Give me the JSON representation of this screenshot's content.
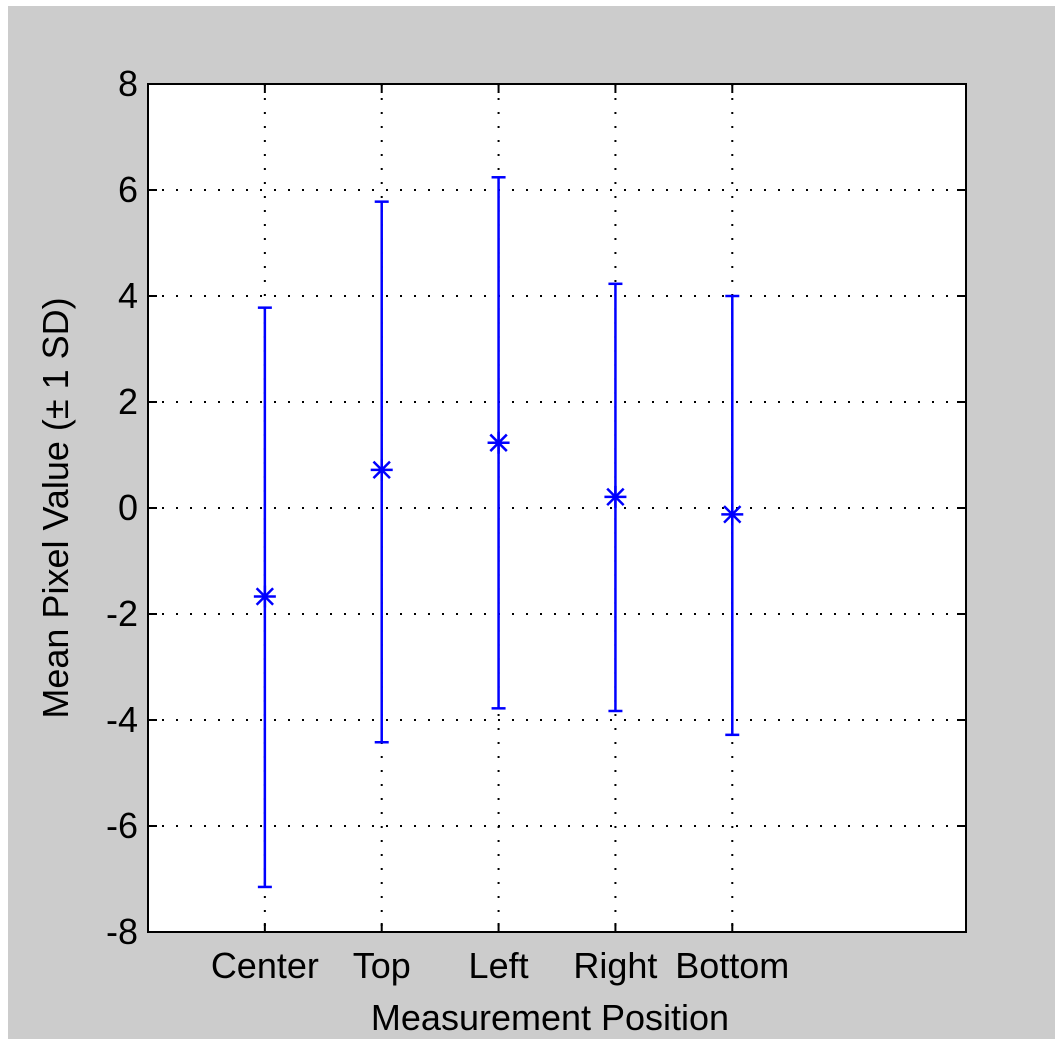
{
  "chart_data": {
    "type": "errorbar",
    "title": "",
    "xlabel": "Measurement Position",
    "ylabel": "Mean Pixel Value (± 1 SD)",
    "categories": [
      "Center",
      "Top",
      "Left",
      "Right",
      "Bottom"
    ],
    "x": [
      1,
      2,
      3,
      4,
      5
    ],
    "xlim": [
      0,
      7
    ],
    "ylim": [
      -8,
      8
    ],
    "yticks": [
      -8,
      -6,
      -4,
      -2,
      0,
      2,
      4,
      6,
      8
    ],
    "ytick_labels": [
      "-8",
      "-6",
      "-4",
      "-2",
      "0",
      "2",
      "4",
      "6",
      "8"
    ],
    "series": [
      {
        "means": [
          -1.67,
          0.72,
          1.23,
          0.21,
          -0.12
        ],
        "lower": [
          -7.15,
          -4.42,
          -3.78,
          -3.83,
          -4.28
        ],
        "upper": [
          3.78,
          5.78,
          6.24,
          4.23,
          4.0
        ],
        "color": "#0000ff",
        "marker": "star"
      }
    ],
    "grid": true,
    "grid_style": "dotted",
    "legend": false
  },
  "colors": {
    "figure_background": "#cccccc",
    "axes_background": "#ffffff",
    "series": "#0000ff",
    "grid": "#000000"
  }
}
